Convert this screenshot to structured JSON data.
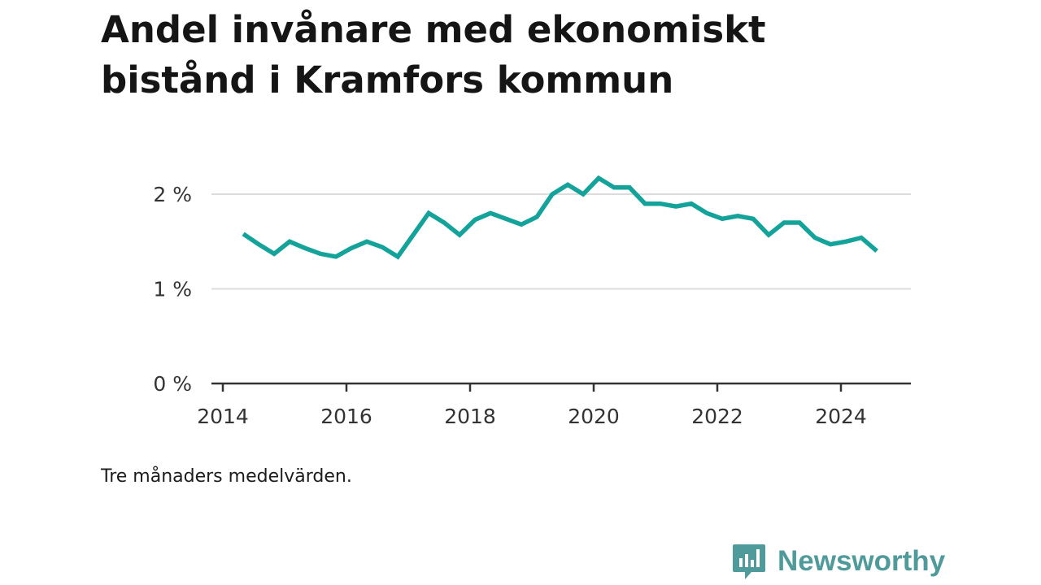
{
  "title": "Andel invånare med ekonomiskt bistånd i Kramfors kommun",
  "note": "Tre månaders medelvärden.",
  "brand": {
    "name": "Newsworthy",
    "icon": "newsworthy-logo-icon",
    "color": "#4f9a9a"
  },
  "chart_data": {
    "type": "line",
    "title": "Andel invånare med ekonomiskt bistånd i Kramfors kommun",
    "xlabel": "",
    "ylabel": "",
    "xlim": [
      2013.8,
      2025.3
    ],
    "ylim": [
      0,
      2.2
    ],
    "x_ticks": [
      2014,
      2016,
      2018,
      2020,
      2022,
      2024
    ],
    "x_tick_labels": [
      "2014",
      "2016",
      "2018",
      "2020",
      "2022",
      "2024"
    ],
    "y_ticks": [
      0,
      1,
      2
    ],
    "y_tick_labels": [
      "0 %",
      "1 %",
      "2 %"
    ],
    "grid": "horizontal",
    "line_color": "#14a39a",
    "series": [
      {
        "x": [
          2014.33,
          2014.58,
          2014.83,
          2015.08,
          2015.33,
          2015.58,
          2015.83,
          2016.08,
          2016.33,
          2016.58,
          2016.83,
          2017.08,
          2017.33,
          2017.58,
          2017.83,
          2018.08,
          2018.33,
          2018.58,
          2018.83,
          2019.08,
          2019.33,
          2019.58,
          2019.83,
          2020.08,
          2020.33,
          2020.58,
          2020.83,
          2021.08,
          2021.33,
          2021.58,
          2021.83,
          2022.08,
          2022.33,
          2022.58,
          2022.83,
          2023.08,
          2023.33,
          2023.58,
          2023.83,
          2024.08,
          2024.33,
          2024.58
        ],
        "y": [
          1.58,
          1.47,
          1.37,
          1.5,
          1.43,
          1.37,
          1.34,
          1.43,
          1.5,
          1.44,
          1.34,
          1.57,
          1.8,
          1.7,
          1.57,
          1.73,
          1.8,
          1.74,
          1.68,
          1.76,
          2.0,
          2.1,
          2.0,
          2.17,
          2.07,
          2.07,
          1.9,
          1.9,
          1.87,
          1.9,
          1.8,
          1.74,
          1.77,
          1.74,
          1.57,
          1.7,
          1.7,
          1.54,
          1.47,
          1.5,
          1.54,
          1.4
        ]
      }
    ]
  }
}
